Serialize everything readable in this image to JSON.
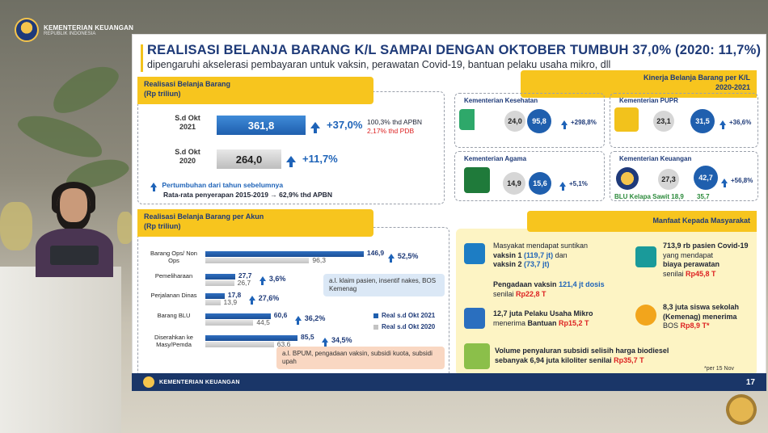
{
  "broadcast": {
    "logo_line1": "KEMENTERIAN KEUANGAN",
    "logo_line2": "REPUBLIK INDONESIA"
  },
  "slide": {
    "title": "REALISASI BELANJA BARANG K/L SAMPAI DENGAN OKTOBER TUMBUH 37,0% (2020: 11,7%)",
    "subtitle": "dipengaruhi akselerasi pembayaran untuk vaksin, perawatan Covid-19, bantuan pelaku usaha mikro, dll",
    "footer_text": "KEMENTERIAN KEUANGAN",
    "page_number": "17",
    "footnote": "*per 15 Nov"
  },
  "realisasi": {
    "banner_line1": "Realisasi Belanja Barang",
    "banner_line2": "(Rp triliun)",
    "row1_label": "S.d Okt 2021",
    "row1_value": "361,8",
    "row1_growth": "+37,0%",
    "row1_note1": "100,3% thd APBN",
    "row1_note2": "2,17% thd PDB",
    "row2_label": "S.d Okt 2020",
    "row2_value": "264,0",
    "row2_growth": "+11,7%",
    "legend_growth": "Pertumbuhan dari tahun sebelumnya",
    "avg_note": "Rata-rata penyerapan 2015-2019 → 62,9% thd APBN"
  },
  "kinerja": {
    "banner_line1": "Kinerja Belanja Barang per K/L",
    "banner_line2": "2020-2021",
    "cards": [
      {
        "name": "Kementerian Kesehatan",
        "v2020": "24,0",
        "v2021": "95,8",
        "growth": "+298,8%",
        "icon": "kemenkes-logo-icon"
      },
      {
        "name": "Kementerian PUPR",
        "v2020": "23,1",
        "v2021": "31,5",
        "growth": "+36,6%",
        "icon": "pupr-logo-icon"
      },
      {
        "name": "Kementerian Agama",
        "v2020": "14,9",
        "v2021": "15,6",
        "growth": "+5,1%",
        "icon": "kemenag-logo-icon"
      },
      {
        "name": "Kementerian Keuangan",
        "v2020": "27,3",
        "v2021": "42,7",
        "growth": "+56,8%",
        "icon": "kemenkeu-logo-icon",
        "sub_label": "BLU Kelapa Sawit 18,9",
        "sub_value": "35,7"
      }
    ]
  },
  "akun": {
    "banner_line1": "Realisasi Belanja Barang per Akun",
    "banner_line2": "(Rp triliun)",
    "legend_2021": "Real s.d Okt 2021",
    "legend_2020": "Real s.d Okt 2020",
    "callout1": "a.l. klaim pasien, insentif nakes, BOS Kemenag",
    "callout2": "a.l. BPUM, pengadaan vaksin, subsidi kuota, subsidi upah",
    "colors": {
      "v2021": "#1f5fae",
      "v2020": "#c3c3c3"
    }
  },
  "chart_data": {
    "type": "bar",
    "orientation": "horizontal",
    "categories": [
      "Barang Ops/ Non Ops",
      "Pemeliharaan",
      "Perjalanan Dinas",
      "Barang BLU",
      "Diserahkan ke Masy/Pemda"
    ],
    "series": [
      {
        "name": "Real s.d Okt 2021",
        "values": [
          146.9,
          27.7,
          17.8,
          60.6,
          85.5
        ],
        "labels": [
          "146,9",
          "27,7",
          "17,8",
          "60,6",
          "85,5"
        ]
      },
      {
        "name": "Real s.d Okt 2020",
        "values": [
          96.3,
          26.7,
          13.9,
          44.5,
          63.6
        ],
        "labels": [
          "96,3",
          "26,7",
          "13,9",
          "44,5",
          "63,6"
        ]
      }
    ],
    "growth": [
      "52,5%",
      "3,6%",
      "27,6%",
      "36,2%",
      "34,5%"
    ],
    "legend": "bottom-right"
  },
  "manfaat": {
    "banner": "Manfaat Kepada Masyarakat",
    "items": {
      "vaksin_intro": "Masyakat mendapat suntikan",
      "vaksin1_label": "vaksin 1",
      "vaksin1_value": "(119,7 jt)",
      "vaksin_dan": "dan",
      "vaksin2_label": "vaksin 2",
      "vaksin2_value": "(73,7 jt)",
      "pengadaan": "Pengadaan vaksin",
      "pengadaan_dosis": "121,4 jt dosis",
      "pengadaan_senilai": "senilai",
      "pengadaan_nilai": "Rp22,8 T",
      "pasien_bold": "713,9 rb pasien Covid-19",
      "pasien_mid": "yang mendapat",
      "pasien_biaya": "biaya perawatan",
      "pasien_senilai": "senilai",
      "pasien_nilai": "Rp45,8 T",
      "umkm_bold": "12,7 juta Pelaku Usaha Mikro",
      "umkm_menerima": "menerima",
      "umkm_bantuan": "Bantuan",
      "umkm_nilai": "Rp15,2 T",
      "siswa_bold": "8,3 juta siswa sekolah",
      "siswa_mid": "(Kemenag) menerima",
      "siswa_bos": "BOS",
      "siswa_nilai": "Rp8,9 T*",
      "biodiesel_line1": "Volume penyaluran subsidi selisih harga biodiesel",
      "biodiesel_line2": "sebanyak 6,94 juta kiloliter senilai",
      "biodiesel_nilai": "Rp35,7 T"
    }
  }
}
